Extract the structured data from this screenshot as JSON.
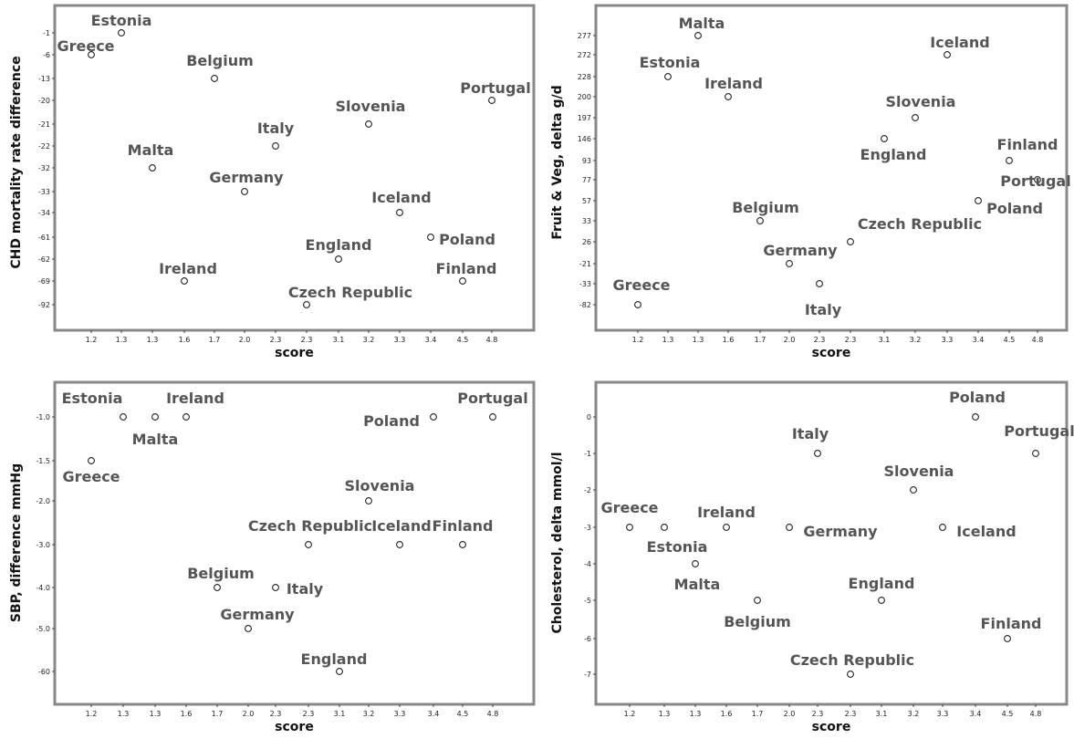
{
  "chart_data": [
    {
      "type": "scatter",
      "xlabel": "score",
      "ylabel": "CHD mortality rate difference",
      "x_ticks": [
        "1.2",
        "1.3",
        "1.3",
        "1.6",
        "1.7",
        "2.0",
        "2.3",
        "2.3",
        "3.1",
        "3.2",
        "3.3",
        "3.4",
        "4.5",
        "4.8"
      ],
      "y_ticks": [
        "-1",
        "-6",
        "-13",
        "-20",
        "-21",
        "-22",
        "-32",
        "-33",
        "-34",
        "-61",
        "-62",
        "-69",
        "-92"
      ],
      "points": [
        {
          "label": "Greece",
          "x_index": 0,
          "y_index": 1
        },
        {
          "label": "Estonia",
          "x_index": 1,
          "y_index": 0
        },
        {
          "label": "Malta",
          "x_index": 2,
          "y_index": 6
        },
        {
          "label": "Ireland",
          "x_index": 3,
          "y_index": 11
        },
        {
          "label": "Belgium",
          "x_index": 4,
          "y_index": 2
        },
        {
          "label": "Germany",
          "x_index": 5,
          "y_index": 7
        },
        {
          "label": "Italy",
          "x_index": 6,
          "y_index": 5
        },
        {
          "label": "Czech Republic",
          "x_index": 7,
          "y_index": 12
        },
        {
          "label": "England",
          "x_index": 8,
          "y_index": 10
        },
        {
          "label": "Slovenia",
          "x_index": 9,
          "y_index": 4
        },
        {
          "label": "Iceland",
          "x_index": 10,
          "y_index": 8
        },
        {
          "label": "Poland",
          "x_index": 11,
          "y_index": 9
        },
        {
          "label": "Finland",
          "x_index": 12,
          "y_index": 11
        },
        {
          "label": "Portugal",
          "x_index": 13,
          "y_index": 3
        }
      ]
    },
    {
      "type": "scatter",
      "xlabel": "score",
      "ylabel": "Fruit & Veg, delta g/d",
      "x_ticks": [
        "1.2",
        "1.3",
        "1.3",
        "1.6",
        "1.7",
        "2.0",
        "2.3",
        "2.3",
        "3.1",
        "3.2",
        "3.3",
        "3.4",
        "4.5",
        "4.8"
      ],
      "y_ticks": [
        "277",
        "272",
        "228",
        "200",
        "197",
        "146",
        "93",
        "77",
        "57",
        "33",
        "26",
        "-21",
        "-33",
        "-82"
      ],
      "points": [
        {
          "label": "Greece",
          "x_index": 0,
          "y_index": 13
        },
        {
          "label": "Estonia",
          "x_index": 1,
          "y_index": 2
        },
        {
          "label": "Malta",
          "x_index": 2,
          "y_index": 0
        },
        {
          "label": "Ireland",
          "x_index": 3,
          "y_index": 3
        },
        {
          "label": "Belgium",
          "x_index": 4,
          "y_index": 9
        },
        {
          "label": "Germany",
          "x_index": 5,
          "y_index": 11
        },
        {
          "label": "Italy",
          "x_index": 6,
          "y_index": 12
        },
        {
          "label": "Czech Republic",
          "x_index": 7,
          "y_index": 10
        },
        {
          "label": "England",
          "x_index": 8,
          "y_index": 5
        },
        {
          "label": "Slovenia",
          "x_index": 9,
          "y_index": 4
        },
        {
          "label": "Iceland",
          "x_index": 10,
          "y_index": 1
        },
        {
          "label": "Poland",
          "x_index": 11,
          "y_index": 8
        },
        {
          "label": "Finland",
          "x_index": 12,
          "y_index": 6
        },
        {
          "label": "Portugal",
          "x_index": 13,
          "y_index": 7
        }
      ]
    },
    {
      "type": "scatter",
      "xlabel": "score",
      "ylabel": "SBP, difference mmHg",
      "x_ticks": [
        "1.2",
        "1.3",
        "1.3",
        "1.6",
        "1.7",
        "2.0",
        "2.3",
        "2.3",
        "3.1",
        "3.2",
        "3.3",
        "3.4",
        "4.5",
        "4.8"
      ],
      "y_ticks": [
        "-1.0",
        "-1.5",
        "-2.0",
        "-3.0",
        "-4.0",
        "-5.0",
        "-60"
      ],
      "points": [
        {
          "label": "Greece",
          "x_index": 0,
          "y_index": 1
        },
        {
          "label": "Estonia",
          "x_index": 1,
          "y_index": 0
        },
        {
          "label": "Malta",
          "x_index": 2,
          "y_index": 0
        },
        {
          "label": "Ireland",
          "x_index": 3,
          "y_index": 0
        },
        {
          "label": "Belgium",
          "x_index": 4,
          "y_index": 4
        },
        {
          "label": "Germany",
          "x_index": 5,
          "y_index": 5
        },
        {
          "label": "Italy",
          "x_index": 6,
          "y_index": 4
        },
        {
          "label": "Czech Republic",
          "x_index": 7,
          "y_index": 3
        },
        {
          "label": "England",
          "x_index": 8,
          "y_index": 6
        },
        {
          "label": "Slovenia",
          "x_index": 9,
          "y_index": 2
        },
        {
          "label": "Iceland",
          "x_index": 10,
          "y_index": 3
        },
        {
          "label": "Poland",
          "x_index": 11,
          "y_index": 0
        },
        {
          "label": "Finland",
          "x_index": 12,
          "y_index": 3
        },
        {
          "label": "Portugal",
          "x_index": 13,
          "y_index": 0
        }
      ]
    },
    {
      "type": "scatter",
      "xlabel": "score",
      "ylabel": "Cholesterol, delta mmol/l",
      "x_ticks": [
        "1.2",
        "1.3",
        "1.3",
        "1.6",
        "1.7",
        "2.0",
        "2.3",
        "2.3",
        "3.1",
        "3.2",
        "3.3",
        "3.4",
        "4.5",
        "4.8"
      ],
      "y_ticks": [
        "0",
        "-1",
        "-2",
        "-3",
        "-4",
        "-5",
        "-6",
        "-7"
      ],
      "points": [
        {
          "label": "Greece",
          "x_index": 0,
          "y_index": 3
        },
        {
          "label": "Estonia",
          "x_index": 1,
          "y_index": 3
        },
        {
          "label": "Malta",
          "x_index": 2,
          "y_index": 4
        },
        {
          "label": "Ireland",
          "x_index": 3,
          "y_index": 3
        },
        {
          "label": "Belgium",
          "x_index": 4,
          "y_index": 5
        },
        {
          "label": "Germany",
          "x_index": 5,
          "y_index": 3
        },
        {
          "label": "Italy",
          "x_index": 6,
          "y_index": 1
        },
        {
          "label": "Czech Republic",
          "x_index": 7,
          "y_index": 7
        },
        {
          "label": "England",
          "x_index": 8,
          "y_index": 5
        },
        {
          "label": "Slovenia",
          "x_index": 9,
          "y_index": 2
        },
        {
          "label": "Iceland",
          "x_index": 10,
          "y_index": 3
        },
        {
          "label": "Poland",
          "x_index": 11,
          "y_index": 0
        },
        {
          "label": "Finland",
          "x_index": 12,
          "y_index": 6
        },
        {
          "label": "Portugal",
          "x_index": 13,
          "y_index": 1
        }
      ]
    }
  ]
}
